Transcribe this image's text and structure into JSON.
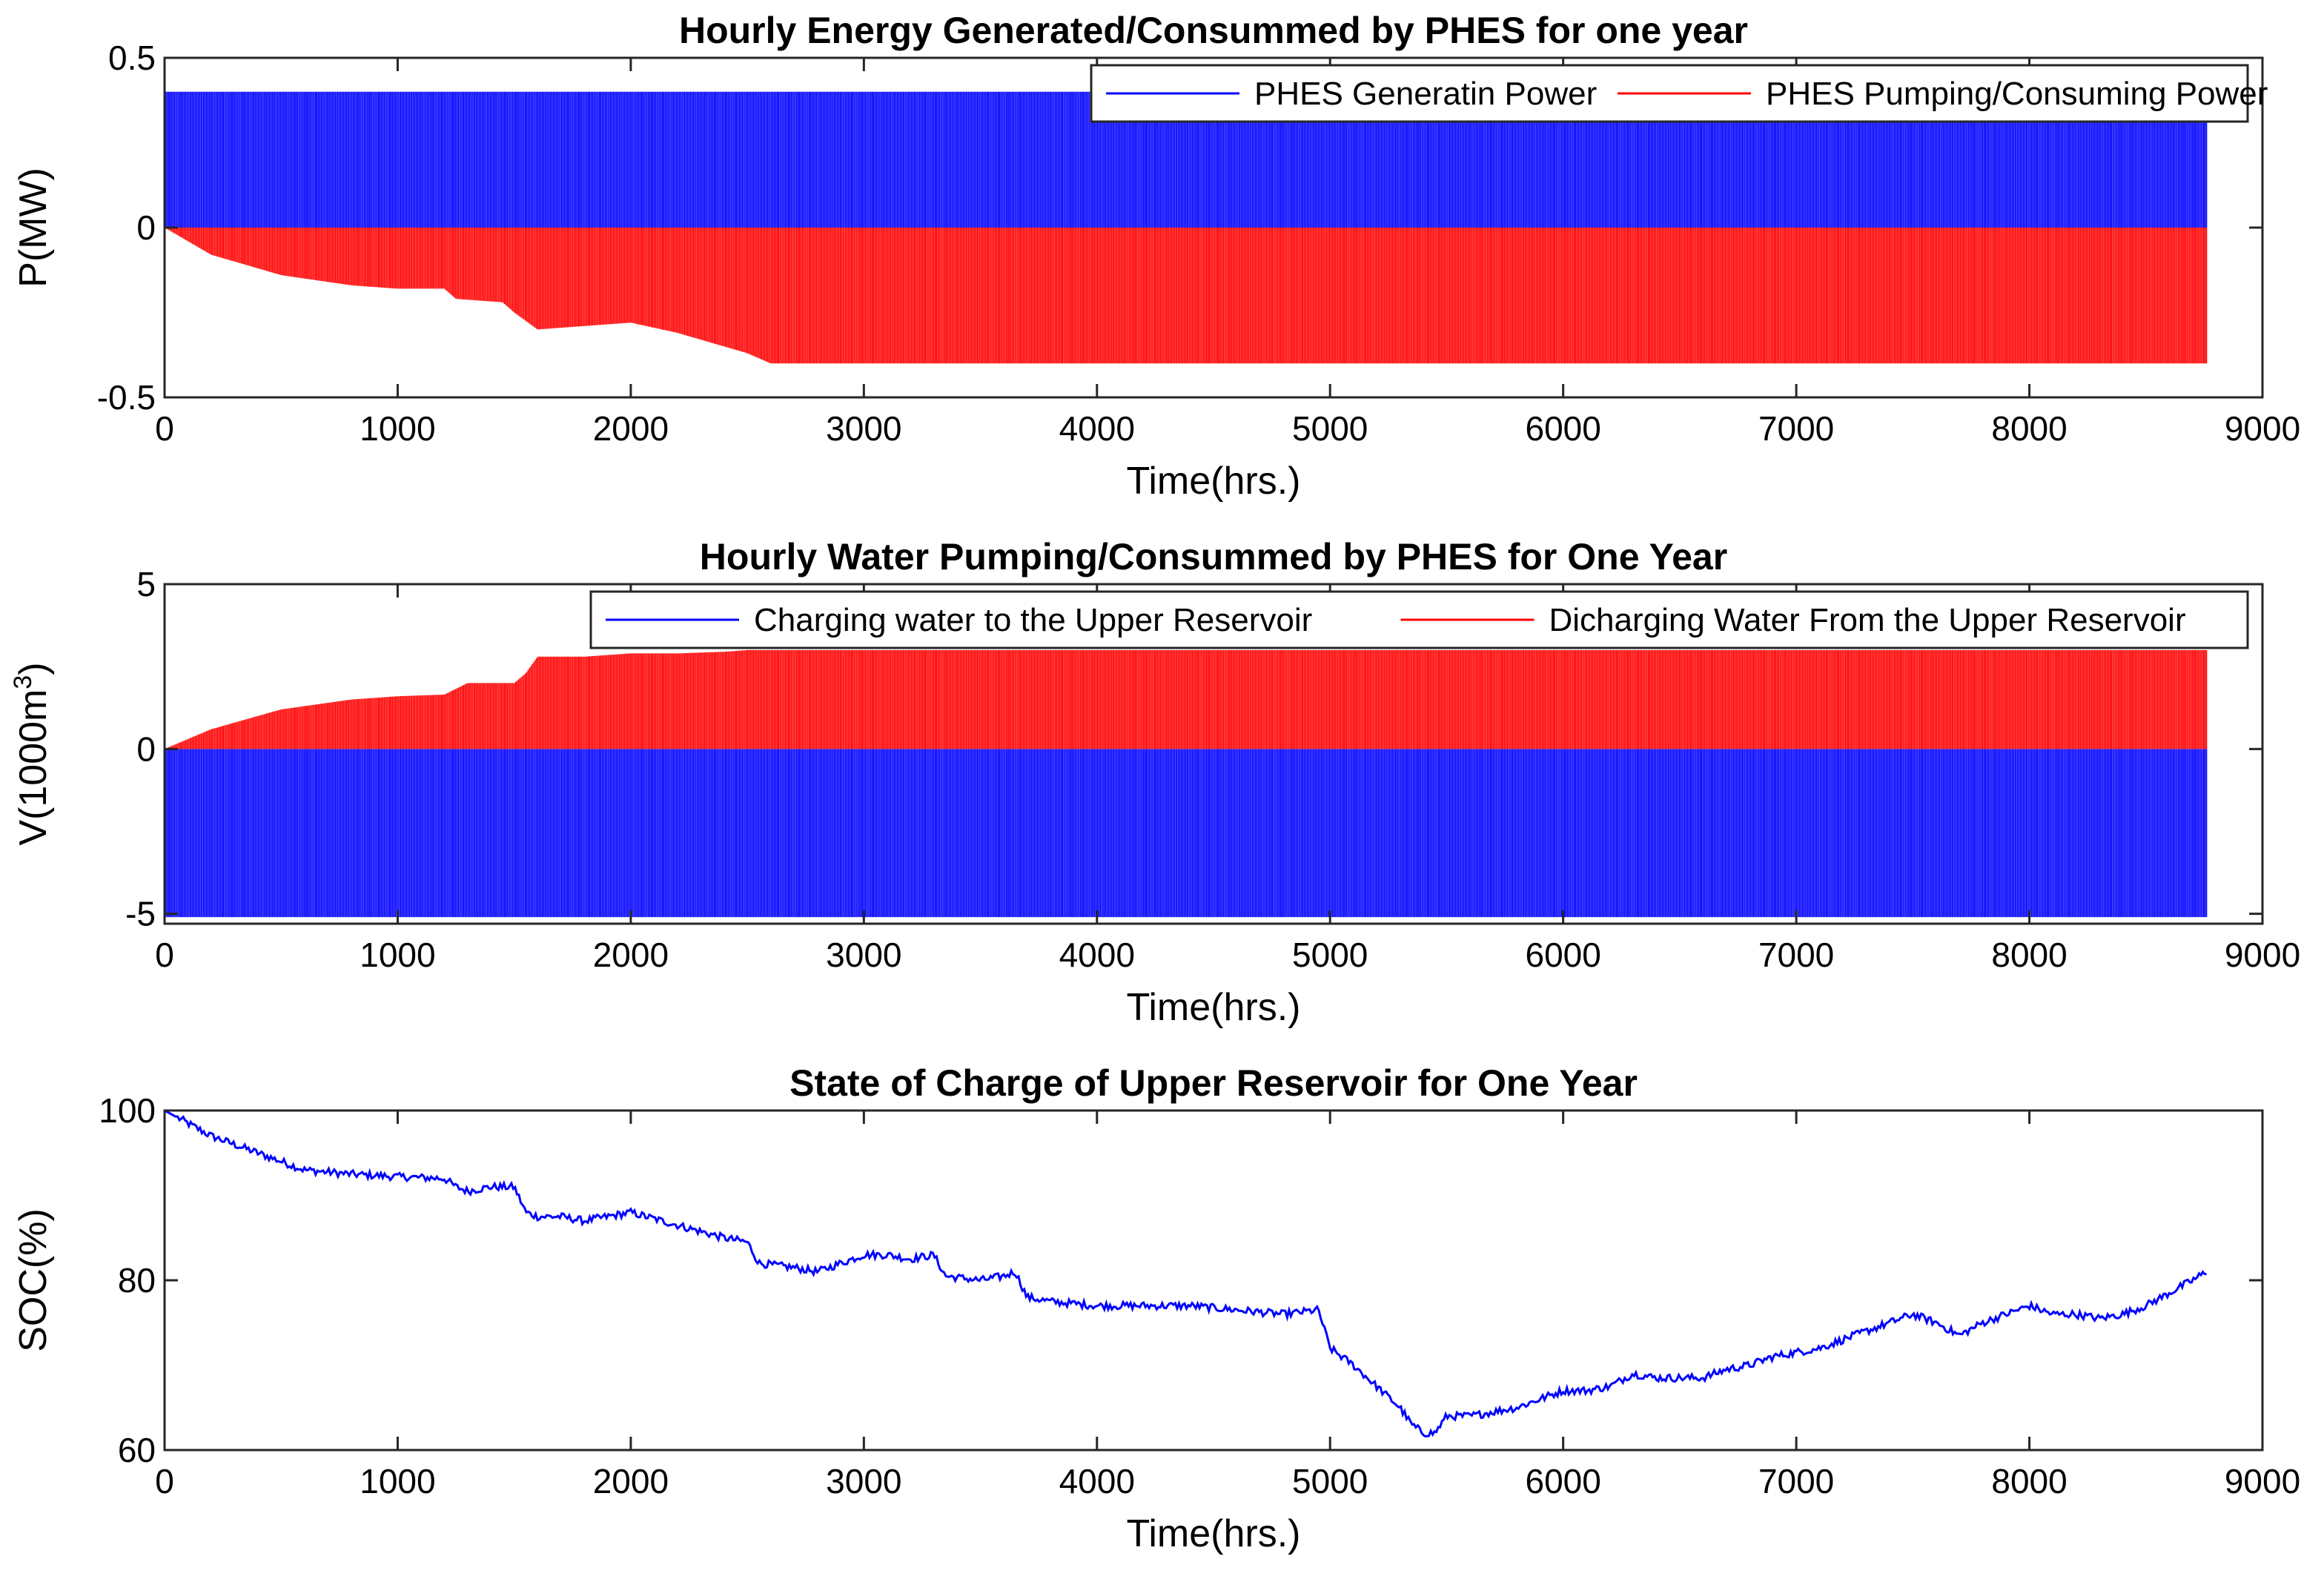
{
  "chart_data": [
    {
      "type": "line",
      "title": "Hourly Energy Generated/Consummed by PHES for one year",
      "xlabel": "Time(hrs.)",
      "ylabel": "P(MW)",
      "xlim": [
        0,
        9000
      ],
      "ylim": [
        -0.5,
        0.5
      ],
      "xticks": [
        0,
        1000,
        2000,
        3000,
        4000,
        5000,
        6000,
        7000,
        8000,
        9000
      ],
      "yticks": [
        -0.5,
        0,
        0.5
      ],
      "ytick_labels": [
        "-0.5",
        "0",
        "0.5"
      ],
      "legend_position": "top-right",
      "series": [
        {
          "name": "PHES Generatin Power",
          "color": "#0000ff",
          "style": "hourly oscillation",
          "x_end": 8760,
          "upper": 0.4,
          "lower": 0
        },
        {
          "name": "PHES Pumping/Consuming Power",
          "color": "#ff0000",
          "style": "hourly oscillation",
          "x_end": 8760,
          "upper": 0,
          "lower_envelope": {
            "x": [
              0,
              200,
              500,
              800,
              1000,
              1200,
              1250,
              1450,
              1500,
              1600,
              1800,
              2000,
              2200,
              2400,
              2500,
              2600,
              3000,
              5000,
              8760
            ],
            "y": [
              0,
              -0.08,
              -0.14,
              -0.17,
              -0.18,
              -0.18,
              -0.21,
              -0.22,
              -0.25,
              -0.3,
              -0.29,
              -0.28,
              -0.31,
              -0.35,
              -0.37,
              -0.4,
              -0.4,
              -0.4,
              -0.4
            ]
          }
        }
      ]
    },
    {
      "type": "line",
      "title": "Hourly Water Pumping/Consummed by PHES for One Year",
      "xlabel": "Time(hrs.)",
      "ylabel_main": "V(1000m",
      "ylabel_sup": "3",
      "ylabel_tail": ")",
      "xlim": [
        0,
        9000
      ],
      "ylim": [
        -5.3,
        5
      ],
      "xticks": [
        0,
        1000,
        2000,
        3000,
        4000,
        5000,
        6000,
        7000,
        8000,
        9000
      ],
      "yticks": [
        -5,
        0,
        5
      ],
      "ytick_labels": [
        "-5",
        "0",
        "5"
      ],
      "legend_position": "top-right",
      "series": [
        {
          "name": "Charging water to the Upper Reservoir",
          "color": "#0000ff",
          "style": "hourly oscillation",
          "x_end": 8760,
          "upper": 0,
          "lower": -5.1
        },
        {
          "name": "Dicharging Water From the Upper Reservoir",
          "color": "#ff0000",
          "style": "hourly oscillation",
          "x_end": 8760,
          "lower": 0,
          "upper_envelope": {
            "x": [
              0,
              200,
              500,
              800,
              1000,
              1200,
              1300,
              1500,
              1550,
              1600,
              1800,
              2000,
              2200,
              2400,
              2500,
              3000,
              8760
            ],
            "y": [
              0,
              0.6,
              1.2,
              1.5,
              1.6,
              1.65,
              2.0,
              2.0,
              2.3,
              2.8,
              2.8,
              2.9,
              2.9,
              2.95,
              3.0,
              3.0,
              3.0
            ]
          }
        }
      ]
    },
    {
      "type": "line",
      "title": "State of Charge of Upper Reservoir for One Year",
      "xlabel": "Time(hrs.)",
      "ylabel": "SOC(%)",
      "xlim": [
        0,
        9000
      ],
      "ylim": [
        60,
        100
      ],
      "xticks": [
        0,
        1000,
        2000,
        3000,
        4000,
        5000,
        6000,
        7000,
        8000,
        9000
      ],
      "yticks": [
        60,
        80,
        100
      ],
      "ytick_labels": [
        "60",
        "80",
        "100"
      ],
      "series": [
        {
          "name": "",
          "color": "#0000ff",
          "x": [
            0,
            100,
            200,
            300,
            400,
            500,
            600,
            800,
            1000,
            1200,
            1250,
            1300,
            1400,
            1500,
            1550,
            1600,
            1700,
            1800,
            2000,
            2200,
            2400,
            2500,
            2550,
            2700,
            2800,
            3000,
            3100,
            3200,
            3300,
            3350,
            3500,
            3600,
            3650,
            3700,
            3800,
            4000,
            4200,
            4400,
            4600,
            4800,
            4950,
            5000,
            5100,
            5200,
            5300,
            5350,
            5400,
            5450,
            5500,
            5600,
            5700,
            5800,
            5900,
            6000,
            6100,
            6200,
            6300,
            6400,
            6500,
            6600,
            6700,
            6800,
            6900,
            7000,
            7100,
            7200,
            7300,
            7400,
            7500,
            7600,
            7700,
            7800,
            7900,
            8000,
            8100,
            8200,
            8300,
            8400,
            8500,
            8600,
            8700,
            8760
          ],
          "y": [
            100,
            98.5,
            97,
            96,
            95,
            94,
            93,
            92.5,
            92.2,
            92,
            91,
            90.5,
            91,
            91,
            88,
            87.5,
            87.5,
            87,
            88,
            86.5,
            85,
            84.5,
            82,
            81.5,
            81,
            83,
            83,
            82.5,
            83,
            80.5,
            80,
            80.5,
            81,
            78,
            77.5,
            77,
            77,
            77,
            76.5,
            76,
            76.5,
            72,
            70,
            67.5,
            65,
            63,
            62,
            62,
            64,
            64,
            64.5,
            65,
            66,
            67,
            67,
            67.5,
            69,
            68.5,
            68.5,
            68.5,
            69.5,
            70,
            71,
            71.5,
            72,
            73,
            74,
            75,
            76,
            75,
            73.5,
            75,
            76,
            77,
            76,
            76,
            75.5,
            76,
            77,
            78.5,
            80,
            81
          ]
        }
      ]
    }
  ]
}
